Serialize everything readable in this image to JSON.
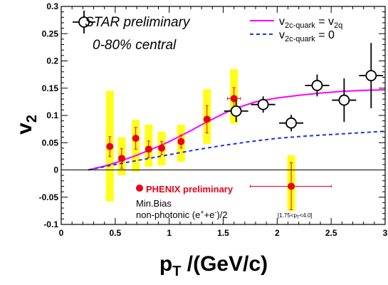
{
  "chart_data": {
    "type": "scatter",
    "xlabel_main": "p",
    "xlabel_sub": "T",
    "xlabel_rest": " /(GeV/c)",
    "ylabel_main": "v",
    "ylabel_sub": "2",
    "xlim": [
      0,
      3
    ],
    "ylim": [
      -0.1,
      0.3
    ],
    "xticks": [
      0,
      0.5,
      1,
      1.5,
      2,
      2.5,
      3
    ],
    "xtick_labels": [
      "0",
      "0.5",
      "1",
      "1.5",
      "2",
      "2.5",
      "3"
    ],
    "yticks": [
      -0.1,
      -0.05,
      0,
      0.05,
      0.1,
      0.15,
      0.2,
      0.25,
      0.3
    ],
    "ytick_labels": [
      "-0.1",
      "-0.05",
      "0",
      "0.05",
      "0.1",
      "0.15",
      "0.2",
      "0.25",
      "0.3"
    ],
    "annotations": {
      "star_line1": "STAR preliminary",
      "star_line2": "0-80% central",
      "legend_magenta_v": "v",
      "legend_magenta_sub": "2c-quark",
      "legend_magenta_eq": " = v",
      "legend_magenta_sub2": "2q",
      "legend_blue_v": "v",
      "legend_blue_sub": "2c-quark",
      "legend_blue_eq": " = 0",
      "phenix_label": "PHENIX preliminary",
      "phenix_line2": "Min.Bias",
      "phenix_line3": "non-photonic (e",
      "phenix_line3_sup1": "+",
      "phenix_line3_mid": "+e",
      "phenix_line3_sup2": "-",
      "phenix_line3_end": ")/2",
      "bin_note": "[1.75<p",
      "bin_note_sub": "T",
      "bin_note_end": "<4.0]"
    },
    "series": [
      {
        "name": "STAR preliminary",
        "color": "#000000",
        "points": [
          {
            "x": 1.62,
            "y": 0.108,
            "yerr": 0.02,
            "xerr": 0.0
          },
          {
            "x": 1.87,
            "y": 0.12,
            "yerr": 0.015,
            "xerr": 0.0
          },
          {
            "x": 2.13,
            "y": 0.086,
            "yerr": 0.015,
            "xerr": 0.0
          },
          {
            "x": 2.37,
            "y": 0.155,
            "yerr": 0.02,
            "xerr": 0.0
          },
          {
            "x": 2.62,
            "y": 0.128,
            "yerr": 0.04,
            "xerr": 0.0
          },
          {
            "x": 2.87,
            "y": 0.173,
            "yerr": 0.06,
            "xerr": 0.0
          }
        ]
      },
      {
        "name": "PHENIX preliminary",
        "color": "#e8001a",
        "points": [
          {
            "x": 0.45,
            "y": 0.043,
            "yerr": 0.018,
            "xerr": 0.0,
            "sys_lo": -0.058,
            "sys_hi": 0.145
          },
          {
            "x": 0.56,
            "y": 0.021,
            "yerr": 0.018,
            "xerr": 0.0,
            "sys_lo": -0.01,
            "sys_hi": 0.06
          },
          {
            "x": 0.69,
            "y": 0.058,
            "yerr": 0.02,
            "xerr": 0.0,
            "sys_lo": -0.003,
            "sys_hi": 0.092
          },
          {
            "x": 0.81,
            "y": 0.038,
            "yerr": 0.015,
            "xerr": 0.0,
            "sys_lo": 0.006,
            "sys_hi": 0.083
          },
          {
            "x": 0.93,
            "y": 0.04,
            "yerr": 0.012,
            "xerr": 0.0,
            "sys_lo": 0.008,
            "sys_hi": 0.07
          },
          {
            "x": 1.11,
            "y": 0.052,
            "yerr": 0.012,
            "xerr": 0.0,
            "sys_lo": 0.015,
            "sys_hi": 0.083
          },
          {
            "x": 1.35,
            "y": 0.093,
            "yerr": 0.025,
            "xerr": 0.0,
            "sys_lo": 0.048,
            "sys_hi": 0.148
          },
          {
            "x": 1.6,
            "y": 0.131,
            "yerr": 0.02,
            "xerr": 0.06,
            "sys_lo": 0.085,
            "sys_hi": 0.185
          },
          {
            "x": 2.13,
            "y": -0.03,
            "yerr": 0.043,
            "xerr_lo": 0.38,
            "xerr_hi": 0.37,
            "sys_lo": -0.075,
            "sys_hi": 0.027
          }
        ]
      }
    ],
    "curves": [
      {
        "name": "v2c-quark = v2q",
        "color": "#ff00ff",
        "style": "solid",
        "x": [
          0.25,
          0.4,
          0.5,
          0.6,
          0.7,
          0.8,
          0.9,
          1.0,
          1.1,
          1.2,
          1.3,
          1.4,
          1.5,
          1.6,
          1.8,
          2.0,
          2.2,
          2.4,
          2.6,
          2.8,
          3.0
        ],
        "y": [
          0.0,
          0.007,
          0.013,
          0.02,
          0.027,
          0.035,
          0.043,
          0.052,
          0.062,
          0.072,
          0.083,
          0.093,
          0.103,
          0.112,
          0.125,
          0.132,
          0.137,
          0.141,
          0.144,
          0.146,
          0.147
        ]
      },
      {
        "name": "v2c-quark = 0",
        "color": "#2233dd",
        "style": "dashed",
        "x": [
          0.25,
          0.5,
          0.75,
          1.0,
          1.25,
          1.5,
          1.75,
          2.0,
          2.25,
          2.5,
          2.75,
          3.0
        ],
        "y": [
          0.0,
          0.01,
          0.019,
          0.028,
          0.037,
          0.045,
          0.052,
          0.058,
          0.062,
          0.065,
          0.068,
          0.071
        ]
      }
    ],
    "grid": false
  }
}
